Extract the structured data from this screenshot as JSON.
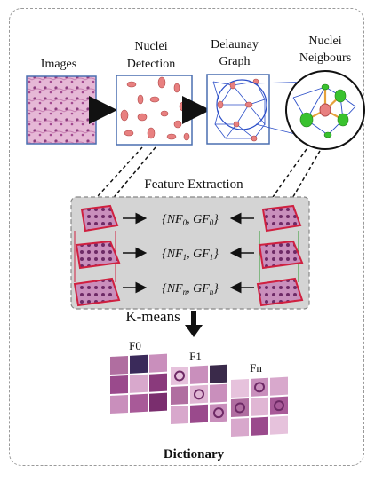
{
  "stages": {
    "images": "Images",
    "nuclei_detection_1": "Nuclei",
    "nuclei_detection_2": "Detection",
    "delaunay_1": "Delaunay",
    "delaunay_2": "Graph",
    "neighbours_1": "Nuclei",
    "neighbours_2": "Neigbours"
  },
  "feature_extraction": {
    "title": "Feature Extraction",
    "rows": [
      {
        "nf": "{NF",
        "sub": "0",
        "mid": ", GF",
        "sub2": "0",
        "end": "}"
      },
      {
        "nf": "{NF",
        "sub": "1",
        "mid": ", GF",
        "sub2": "1",
        "end": "}"
      },
      {
        "nf": "{NF",
        "sub": "n",
        "mid": ", GF",
        "sub2": "n",
        "end": "}"
      }
    ]
  },
  "kmeans": "K-means",
  "dictionary": {
    "groups": [
      "F0",
      "F1",
      "Fn"
    ],
    "title": "Dictionary"
  },
  "colors": {
    "tissue": "#d9a3c6",
    "nucleus": "#e88080",
    "neighbour": "#39c22e",
    "panel_bg": "#d4d4d4",
    "box_border": "#4a6fb0",
    "red_pyramid": "#d02040",
    "green_pyramid": "#2f9a2f",
    "graph_edge": "#2c4fc8"
  }
}
